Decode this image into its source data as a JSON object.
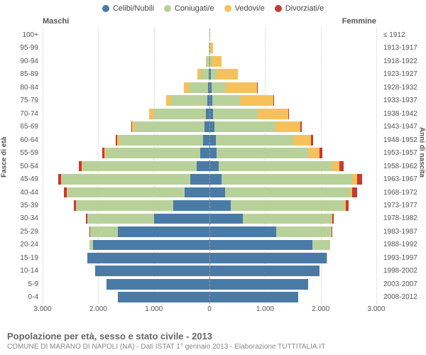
{
  "chart": {
    "type": "population-pyramid",
    "background_color": "#ffffff",
    "grid_color": "#d0d0d0",
    "center_line_color": "#999999",
    "text_color": "#555555",
    "legend": [
      {
        "label": "Celibi/Nubili",
        "color": "#4a7ba6"
      },
      {
        "label": "Coniugati/e",
        "color": "#b8d19a"
      },
      {
        "label": "Vedovi/e",
        "color": "#f6c15b"
      },
      {
        "label": "Divorziati/e",
        "color": "#c63a32"
      }
    ],
    "gender_male_label": "Maschi",
    "gender_female_label": "Femmine",
    "y_left_title": "Fasce di età",
    "y_right_title": "Anni di nascita",
    "x_max": 3000,
    "x_ticks": [
      3000,
      2000,
      1000,
      0,
      1000,
      2000,
      3000
    ],
    "x_tick_labels": [
      "3.000",
      "2.000",
      "1.000",
      "0",
      "1.000",
      "2.000",
      "3.000"
    ],
    "age_labels": [
      "0-4",
      "5-9",
      "10-14",
      "15-19",
      "20-24",
      "25-29",
      "30-34",
      "35-39",
      "40-44",
      "45-49",
      "50-54",
      "55-59",
      "60-64",
      "65-69",
      "70-74",
      "75-79",
      "80-84",
      "85-89",
      "90-94",
      "95-99",
      "100+"
    ],
    "birth_labels": [
      "2008-2012",
      "2003-2007",
      "1998-2002",
      "1993-1997",
      "1988-1992",
      "1983-1987",
      "1978-1982",
      "1973-1977",
      "1968-1972",
      "1963-1967",
      "1958-1962",
      "1953-1957",
      "1948-1952",
      "1943-1947",
      "1938-1942",
      "1933-1937",
      "1928-1932",
      "1923-1927",
      "1918-1922",
      "1913-1917",
      "≤ 1912"
    ],
    "rows": [
      {
        "m": {
          "single": 1650,
          "married": 0,
          "widow": 0,
          "div": 0
        },
        "f": {
          "single": 1600,
          "married": 0,
          "widow": 0,
          "div": 0
        }
      },
      {
        "m": {
          "single": 1850,
          "married": 0,
          "widow": 0,
          "div": 0
        },
        "f": {
          "single": 1780,
          "married": 0,
          "widow": 0,
          "div": 0
        }
      },
      {
        "m": {
          "single": 2050,
          "married": 0,
          "widow": 0,
          "div": 0
        },
        "f": {
          "single": 1980,
          "married": 0,
          "widow": 0,
          "div": 0
        }
      },
      {
        "m": {
          "single": 2200,
          "married": 0,
          "widow": 0,
          "div": 0
        },
        "f": {
          "single": 2100,
          "married": 5,
          "widow": 0,
          "div": 0
        }
      },
      {
        "m": {
          "single": 2100,
          "married": 60,
          "widow": 0,
          "div": 0
        },
        "f": {
          "single": 1850,
          "married": 320,
          "widow": 0,
          "div": 0
        }
      },
      {
        "m": {
          "single": 1650,
          "married": 500,
          "widow": 0,
          "div": 5
        },
        "f": {
          "single": 1200,
          "married": 1000,
          "widow": 0,
          "div": 10
        }
      },
      {
        "m": {
          "single": 1000,
          "married": 1200,
          "widow": 0,
          "div": 20
        },
        "f": {
          "single": 600,
          "married": 1600,
          "widow": 5,
          "div": 30
        }
      },
      {
        "m": {
          "single": 650,
          "married": 1750,
          "widow": 5,
          "div": 40
        },
        "f": {
          "single": 380,
          "married": 2050,
          "widow": 15,
          "div": 60
        }
      },
      {
        "m": {
          "single": 450,
          "married": 2100,
          "widow": 10,
          "div": 55
        },
        "f": {
          "single": 280,
          "married": 2250,
          "widow": 40,
          "div": 80
        }
      },
      {
        "m": {
          "single": 350,
          "married": 2300,
          "widow": 15,
          "div": 60
        },
        "f": {
          "single": 220,
          "married": 2350,
          "widow": 80,
          "div": 90
        }
      },
      {
        "m": {
          "single": 230,
          "married": 2050,
          "widow": 20,
          "div": 55
        },
        "f": {
          "single": 160,
          "married": 2050,
          "widow": 130,
          "div": 70
        }
      },
      {
        "m": {
          "single": 160,
          "married": 1700,
          "widow": 25,
          "div": 40
        },
        "f": {
          "single": 130,
          "married": 1650,
          "widow": 200,
          "div": 50
        }
      },
      {
        "m": {
          "single": 120,
          "married": 1500,
          "widow": 35,
          "div": 30
        },
        "f": {
          "single": 110,
          "married": 1400,
          "widow": 320,
          "div": 40
        }
      },
      {
        "m": {
          "single": 90,
          "married": 1250,
          "widow": 50,
          "div": 20
        },
        "f": {
          "single": 90,
          "married": 1100,
          "widow": 450,
          "div": 25
        }
      },
      {
        "m": {
          "single": 60,
          "married": 950,
          "widow": 70,
          "div": 10
        },
        "f": {
          "single": 70,
          "married": 800,
          "widow": 550,
          "div": 15
        }
      },
      {
        "m": {
          "single": 40,
          "married": 650,
          "widow": 90,
          "div": 5
        },
        "f": {
          "single": 55,
          "married": 500,
          "widow": 600,
          "div": 8
        }
      },
      {
        "m": {
          "single": 25,
          "married": 350,
          "widow": 90,
          "div": 0
        },
        "f": {
          "single": 40,
          "married": 260,
          "widow": 550,
          "div": 4
        }
      },
      {
        "m": {
          "single": 12,
          "married": 140,
          "widow": 60,
          "div": 0
        },
        "f": {
          "single": 25,
          "married": 100,
          "widow": 380,
          "div": 0
        }
      },
      {
        "m": {
          "single": 5,
          "married": 40,
          "widow": 25,
          "div": 0
        },
        "f": {
          "single": 12,
          "married": 30,
          "widow": 180,
          "div": 0
        }
      },
      {
        "m": {
          "single": 2,
          "married": 8,
          "widow": 8,
          "div": 0
        },
        "f": {
          "single": 5,
          "married": 6,
          "widow": 55,
          "div": 0
        }
      },
      {
        "m": {
          "single": 0,
          "married": 1,
          "widow": 2,
          "div": 0
        },
        "f": {
          "single": 1,
          "married": 1,
          "widow": 14,
          "div": 0
        }
      }
    ],
    "footer_title": "Popolazione per età, sesso e stato civile - 2013",
    "footer_sub": "COMUNE DI MARANO DI NAPOLI (NA) - Dati ISTAT 1° gennaio 2013 - Elaborazione TUTTITALIA.IT"
  }
}
